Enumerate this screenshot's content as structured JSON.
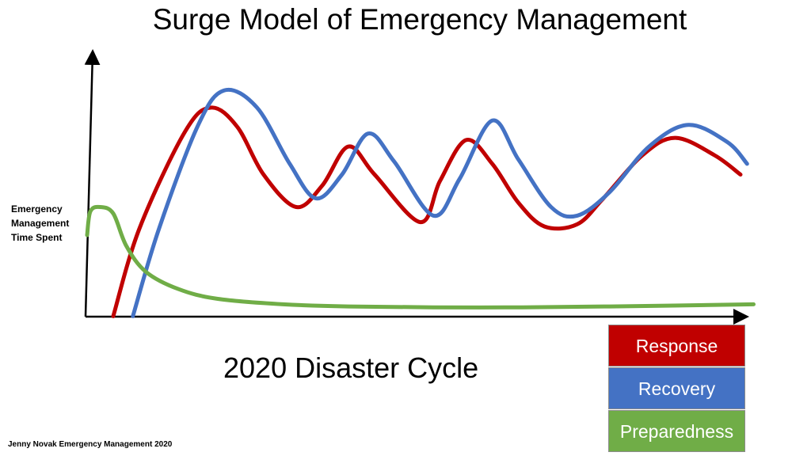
{
  "title": "Surge Model of Emergency Management",
  "footer": "Jenny Novak Emergency Management 2020",
  "chart_data": {
    "type": "line",
    "title": "Surge Model of Emergency Management",
    "xlabel": "2020 Disaster Cycle",
    "ylabel": [
      "Emergency",
      "Management",
      "Time Spent"
    ],
    "grid": false,
    "legend_placement": "bottom-right",
    "series": [
      {
        "name": "Response",
        "color": "#c00000",
        "values": [
          [
            4,
            -0.5
          ],
          [
            8,
            40
          ],
          [
            15,
            85
          ],
          [
            19,
            96
          ],
          [
            23,
            87
          ],
          [
            27,
            65
          ],
          [
            32,
            50
          ],
          [
            36,
            60
          ],
          [
            40,
            78
          ],
          [
            44,
            65
          ],
          [
            51,
            43
          ],
          [
            54,
            62
          ],
          [
            58,
            81
          ],
          [
            62,
            70
          ],
          [
            66,
            52
          ],
          [
            70,
            41
          ],
          [
            75,
            42
          ],
          [
            79,
            54
          ],
          [
            85,
            74
          ],
          [
            90,
            82
          ],
          [
            96,
            74
          ],
          [
            100,
            65
          ]
        ]
      },
      {
        "name": "Recovery",
        "color": "#4472c4",
        "values": [
          [
            7,
            -0.5
          ],
          [
            11,
            40
          ],
          [
            17,
            88
          ],
          [
            21,
            104
          ],
          [
            26,
            96
          ],
          [
            31,
            70
          ],
          [
            35,
            54
          ],
          [
            39,
            65
          ],
          [
            43,
            84
          ],
          [
            47,
            71
          ],
          [
            53,
            46
          ],
          [
            57,
            63
          ],
          [
            62,
            90
          ],
          [
            66,
            72
          ],
          [
            71,
            50
          ],
          [
            75,
            46
          ],
          [
            80,
            57
          ],
          [
            86,
            78
          ],
          [
            92,
            88
          ],
          [
            98,
            80
          ],
          [
            101,
            70
          ]
        ]
      },
      {
        "name": "Preparedness",
        "color": "#70ad47",
        "values": [
          [
            0,
            37
          ],
          [
            0.5,
            48
          ],
          [
            2,
            50
          ],
          [
            4,
            47
          ],
          [
            6,
            32
          ],
          [
            9,
            20
          ],
          [
            14,
            12
          ],
          [
            20,
            7.5
          ],
          [
            30,
            5
          ],
          [
            40,
            4
          ],
          [
            60,
            3.5
          ],
          [
            80,
            4
          ],
          [
            102,
            5
          ]
        ]
      }
    ],
    "legend": [
      "Response",
      "Recovery",
      "Preparedness"
    ]
  }
}
